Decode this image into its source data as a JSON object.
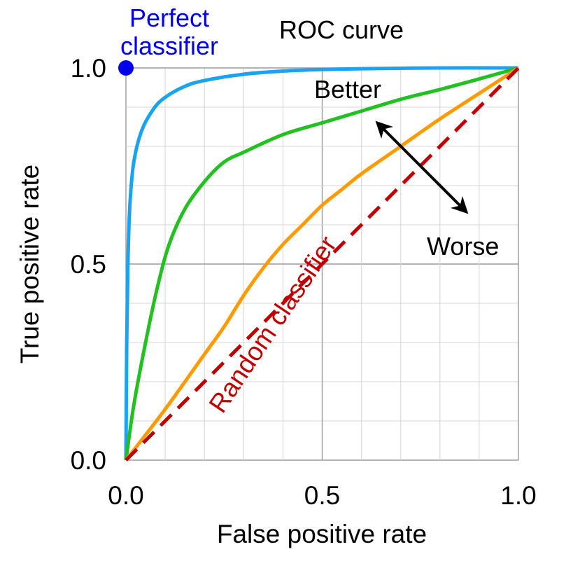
{
  "chart_data": {
    "type": "line",
    "title": "ROC curve",
    "xlabel": "False positive rate",
    "ylabel": "True positive rate",
    "xlim": [
      0,
      1
    ],
    "ylim": [
      0,
      1
    ],
    "x_ticks": [
      "0.0",
      "0.5",
      "1.0"
    ],
    "y_ticks": [
      "0.0",
      "0.5",
      "1.0"
    ],
    "grid": true,
    "grid_step": 0.1,
    "series": [
      {
        "color": "#1aa3f0",
        "style": "solid",
        "points": [
          [
            0,
            0
          ],
          [
            0.002,
            0.3
          ],
          [
            0.005,
            0.5
          ],
          [
            0.01,
            0.65
          ],
          [
            0.02,
            0.76
          ],
          [
            0.04,
            0.84
          ],
          [
            0.07,
            0.895
          ],
          [
            0.1,
            0.925
          ],
          [
            0.15,
            0.953
          ],
          [
            0.2,
            0.968
          ],
          [
            0.3,
            0.984
          ],
          [
            0.4,
            0.992
          ],
          [
            0.5,
            0.996
          ],
          [
            0.6,
            0.998
          ],
          [
            0.8,
            1.0
          ],
          [
            1.0,
            1.0
          ]
        ]
      },
      {
        "color": "#22c020",
        "style": "solid",
        "points": [
          [
            0,
            0
          ],
          [
            0.02,
            0.14
          ],
          [
            0.05,
            0.3
          ],
          [
            0.08,
            0.44
          ],
          [
            0.11,
            0.55
          ],
          [
            0.15,
            0.64
          ],
          [
            0.2,
            0.71
          ],
          [
            0.25,
            0.76
          ],
          [
            0.3,
            0.785
          ],
          [
            0.4,
            0.83
          ],
          [
            0.5,
            0.86
          ],
          [
            0.6,
            0.89
          ],
          [
            0.7,
            0.92
          ],
          [
            0.8,
            0.945
          ],
          [
            0.9,
            0.972
          ],
          [
            1.0,
            1.0
          ]
        ]
      },
      {
        "color": "#ff9b00",
        "style": "solid",
        "points": [
          [
            0,
            0
          ],
          [
            0.1,
            0.13
          ],
          [
            0.2,
            0.27
          ],
          [
            0.25,
            0.34
          ],
          [
            0.3,
            0.42
          ],
          [
            0.35,
            0.49
          ],
          [
            0.4,
            0.55
          ],
          [
            0.45,
            0.6
          ],
          [
            0.5,
            0.65
          ],
          [
            0.55,
            0.69
          ],
          [
            0.6,
            0.73
          ],
          [
            0.7,
            0.8
          ],
          [
            0.8,
            0.87
          ],
          [
            0.9,
            0.935
          ],
          [
            1.0,
            1.0
          ]
        ]
      },
      {
        "name": "Random classifier",
        "color": "#c00000",
        "style": "dashed",
        "points": [
          [
            0,
            0
          ],
          [
            1,
            1
          ]
        ]
      }
    ],
    "perfect_point": {
      "label_line1": "Perfect",
      "label_line2": "classifier",
      "x": 0,
      "y": 1,
      "color": "#0000ee"
    },
    "annotations": {
      "better": "Better",
      "worse": "Worse",
      "random_label": "Random classifier",
      "arrow_color": "#000000"
    }
  }
}
